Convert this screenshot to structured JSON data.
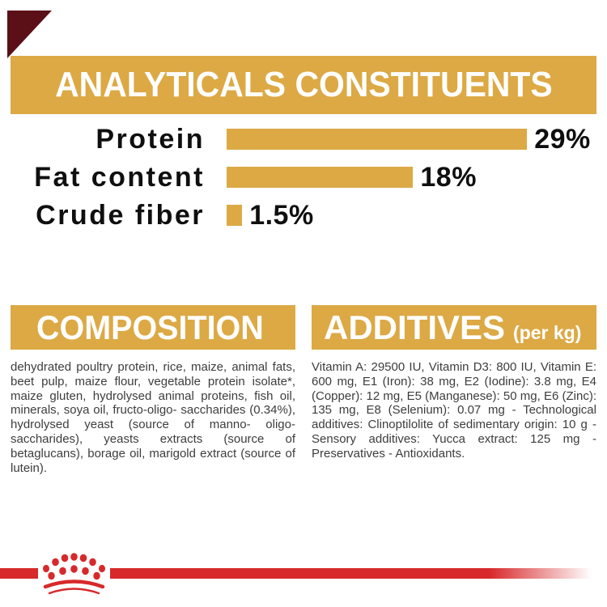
{
  "colors": {
    "gold": "#DCA945",
    "red": "#D7292B",
    "dark_red": "#5B1018",
    "heading_text": "#FFFFFF",
    "chart_text": "#0F0F0F",
    "body_text": "#3D3D3D",
    "background": "#FFFFFF"
  },
  "header": {
    "title": "ANALYTICALS CONSTITUENTS"
  },
  "chart_data": {
    "type": "bar",
    "orientation": "horizontal",
    "title": "ANALYTICALS CONSTITUENTS",
    "categories": [
      "Protein",
      "Fat content",
      "Crude fiber"
    ],
    "values": [
      29,
      18,
      1.5
    ],
    "value_labels": [
      "29%",
      "18%",
      "1.5%"
    ],
    "unit": "%",
    "bar_color": "#DCA945",
    "xlim": [
      0,
      36
    ],
    "grid": false,
    "legend": false
  },
  "sections": {
    "composition": {
      "title": "COMPOSITION",
      "body": "dehydrated poultry protein, rice, maize, animal fats, beet pulp, maize flour, vegetable protein isolate*, maize gluten, hydrolysed animal proteins, fish oil, minerals, soya oil, fructo-oligo- saccharides (0.34%), hydrolysed yeast (source of manno- oligo-saccharides), yeasts extracts (source of betaglucans), borage oil, marigold extract (source of lutein)."
    },
    "additives": {
      "title": "ADDITIVES",
      "title_suffix": "(per kg)",
      "body": "Vitamin A: 29500 IU, Vitamin D3: 800 IU, Vitamin E: 600 mg, E1 (Iron): 38 mg, E2 (Iodine): 3.8 mg, E4 (Copper): 12 mg, E5 (Manganese): 50 mg, E6 (Zinc): 135 mg, E8 (Selenium): 0.07 mg - Technological additives: Clinoptilolite of sedimentary origin: 10 g - Sensory additives: Yucca extract: 125 mg - Preservatives - Antioxidants."
    }
  },
  "footer": {
    "logo_icon": "royal-canin-crown-paw-logo"
  }
}
